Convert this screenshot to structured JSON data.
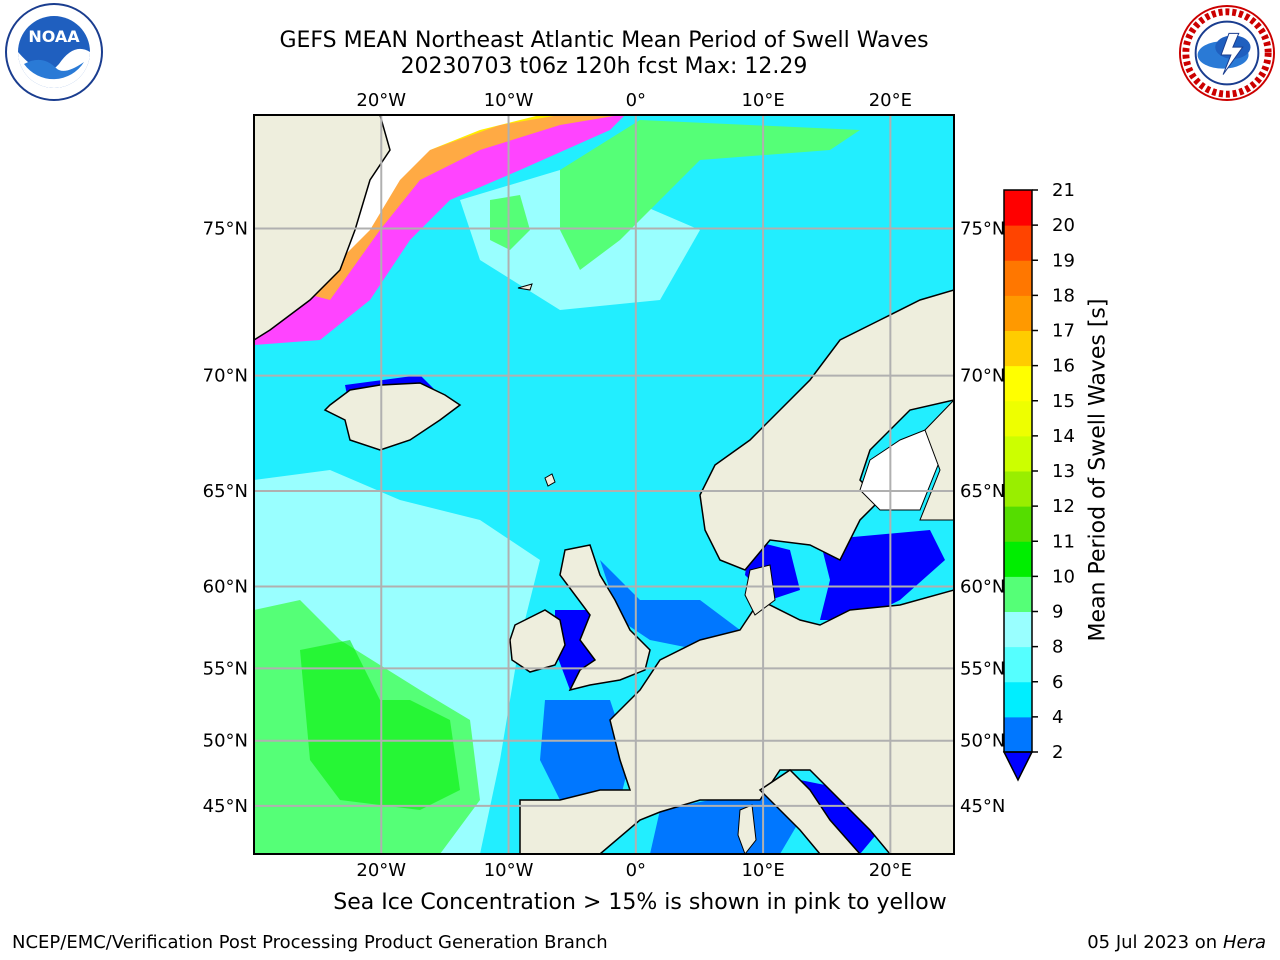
{
  "title": {
    "line1": "GEFS MEAN Northeast Atlantic Mean Period of Swell Waves",
    "line2": "20230703 t06z 120h fcst   Max: 12.29"
  },
  "logos": {
    "left": "noaa-logo",
    "right": "national-weather-service-logo"
  },
  "map": {
    "projection": "lat-lon",
    "lon_range": [
      -30,
      25
    ],
    "lat_range": [
      41,
      78
    ],
    "lon_ticks": [
      {
        "value": -20,
        "label": "20°W"
      },
      {
        "value": -10,
        "label": "10°W"
      },
      {
        "value": 0,
        "label": "0°"
      },
      {
        "value": 10,
        "label": "10°E"
      },
      {
        "value": 20,
        "label": "20°E"
      }
    ],
    "lat_ticks": [
      {
        "value": 75,
        "label": "75°N"
      },
      {
        "value": 70,
        "label": "70°N"
      },
      {
        "value": 65,
        "label": "65°N"
      },
      {
        "value": 60,
        "label": "60°N"
      },
      {
        "value": 55,
        "label": "55°N"
      },
      {
        "value": 50,
        "label": "50°N"
      },
      {
        "value": 45,
        "label": "45°N"
      }
    ],
    "land_color": "#eeeedd",
    "grid": true
  },
  "colorbar": {
    "label": "Mean Period of Swell Waves [s]",
    "levels": [
      2,
      4,
      6,
      8,
      9,
      10,
      11,
      12,
      13,
      14,
      15,
      16,
      17,
      18,
      19,
      20,
      21
    ],
    "colors": [
      "#0000ff",
      "#0077ff",
      "#00eeff",
      "#55ffff",
      "#99ffff",
      "#55ff77",
      "#00ee00",
      "#55dd00",
      "#99ee00",
      "#ccff00",
      "#eeff00",
      "#ffff00",
      "#ffcc00",
      "#ff9900",
      "#ff7700",
      "#ff4400",
      "#ff0000"
    ],
    "extend": "min"
  },
  "caption": "Sea Ice Concentration > 15% is shown in pink to yellow",
  "footer": {
    "left": "NCEP/EMC/Verification Post Processing Product Generation Branch",
    "right_date": "05 Jul 2023 on ",
    "right_host": "Hera"
  }
}
